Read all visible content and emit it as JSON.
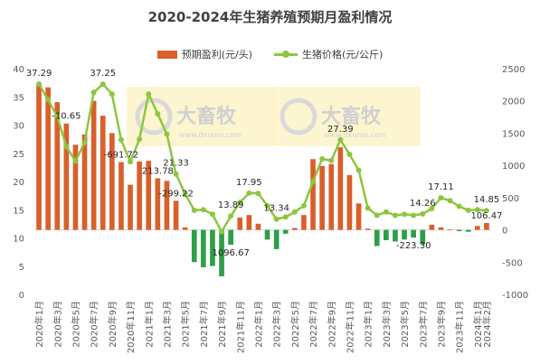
{
  "chart_data": {
    "type": "bar+line",
    "title": "2020-2024年生猪养殖预期月盈利情况",
    "categories": [
      "2020年1月",
      "2020年2月",
      "2020年3月",
      "2020年4月",
      "2020年5月",
      "2020年6月",
      "2020年7月",
      "2020年8月",
      "2020年9月",
      "2020年10月",
      "2020年11月",
      "2020年12月",
      "2021年1月",
      "2021年2月",
      "2021年3月",
      "2021年4月",
      "2021年5月",
      "2021年6月",
      "2021年7月",
      "2021年8月",
      "2021年9月",
      "2021年10月",
      "2021年11月",
      "2021年12月",
      "2022年1月",
      "2022年2月",
      "2022年3月",
      "2022年4月",
      "2022年5月",
      "2022年6月",
      "2022年7月",
      "2022年8月",
      "2022年9月",
      "2022年10月",
      "2022年11月",
      "2022年12月",
      "2023年1月",
      "2023年2月",
      "2023年3月",
      "2023年4月",
      "2023年5月",
      "2023年6月",
      "2023年7月",
      "2023年8月",
      "2023年9月",
      "2023年10月",
      "2023年11月",
      "2023年12月",
      "2024年1月",
      "2024年2月"
    ],
    "x_tick_labels": [
      "2020年1月",
      "2020年3月",
      "2020年5月",
      "2020年7月",
      "2020年9月",
      "2020年11月",
      "2021年1月",
      "2021年3月",
      "2021年5月",
      "2021年7月",
      "2021年9月",
      "2021年11月",
      "2022年1月",
      "2022年3月",
      "2022年5月",
      "2022年7月",
      "2022年9月",
      "2022年11月",
      "2023年1月",
      "2023年3月",
      "2023年5月",
      "2023年7月",
      "2023年9月",
      "2023年11月",
      "2024年1月",
      "2024年2月"
    ],
    "y_left_ticks": [
      "0",
      "5",
      "10",
      "15",
      "20",
      "25",
      "30",
      "35",
      "40"
    ],
    "y_right_ticks": [
      "-1000",
      "-500",
      "0",
      "500",
      "1000",
      "1500",
      "2000",
      "2500"
    ],
    "ylim_left": [
      0,
      40
    ],
    "ylim_right": [
      -1000,
      2500
    ],
    "series": [
      {
        "name": "预期盈利(元/头)",
        "axis": "right",
        "kind": "bar",
        "color_pos": "#D95F2B",
        "color_neg": "#2E9E47",
        "values": [
          2270,
          2210,
          1980,
          1650,
          1320,
          1480,
          2000,
          1770,
          1500,
          1050,
          700,
          1060,
          1070,
          800,
          760,
          450,
          40,
          -500,
          -580,
          -560,
          -720,
          -230,
          190,
          230,
          95,
          -150,
          -299.22,
          -60,
          30,
          230,
          1096.67,
          990,
          1020,
          1280,
          850,
          410,
          20,
          -250,
          -160,
          -180,
          -150,
          -120,
          -223.3,
          80,
          40,
          10,
          -20,
          -30,
          60,
          106.47
        ],
        "labels": {
          "53": "-10.65",
          "59": "-691.72",
          "63": "213.78",
          "65": "-299.22",
          "71": "1096.67",
          "91": "-223.30",
          "99": "106.47"
        }
      },
      {
        "name": "生猪价格(元/公斤)",
        "axis": "left",
        "kind": "line",
        "color": "#8CC63F",
        "values": [
          37.29,
          34.5,
          31.5,
          26.2,
          23.6,
          26.9,
          35.8,
          37.25,
          35.5,
          27.4,
          23.5,
          27.5,
          35.5,
          32.0,
          28.4,
          21.33,
          17.8,
          14.9,
          15.0,
          14.2,
          11.1,
          13.89,
          16.3,
          17.95,
          17.9,
          15.7,
          13.34,
          13.7,
          14.6,
          15.7,
          20.0,
          24.0,
          23.7,
          27.39,
          24.8,
          22.0,
          15.3,
          14.0,
          14.6,
          14.0,
          14.2,
          14.0,
          14.26,
          15.2,
          17.11,
          16.6,
          15.6,
          14.9,
          15.0,
          14.85
        ],
        "labels": {
          "0": "37.29",
          "7": "37.25",
          "15": "21.33",
          "21": "13.89",
          "23": "17.95",
          "26": "13.34",
          "33": "27.39",
          "42": "14.26",
          "44": "17.11",
          "49": "14.85"
        }
      }
    ],
    "legend": "top-center",
    "watermark": "大畜牧 www.dxumu.com"
  }
}
